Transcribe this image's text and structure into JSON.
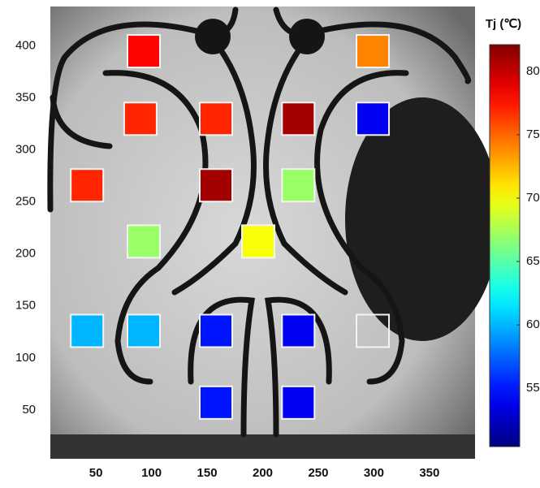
{
  "chart_data": {
    "type": "scatter",
    "colorbar_label": "Tj (℃)",
    "colormap": "jet",
    "x": [
      93,
      299,
      90,
      158,
      232,
      299,
      42,
      158,
      232,
      93,
      196,
      42,
      93,
      158,
      232,
      299,
      158,
      232
    ],
    "y": [
      395,
      395,
      330,
      330,
      330,
      330,
      266,
      266,
      266,
      212,
      212,
      126,
      126,
      126,
      126,
      126,
      57,
      57
    ],
    "values": [
      78,
      74,
      77,
      77,
      81,
      54,
      77,
      81,
      67,
      67,
      70,
      60,
      60,
      55,
      54,
      null,
      55,
      54
    ],
    "xlim": [
      9,
      391
    ],
    "ylim": [
      3,
      438
    ],
    "xticks": [
      50,
      100,
      150,
      200,
      250,
      300,
      350
    ],
    "yticks": [
      50,
      100,
      150,
      200,
      250,
      300,
      350,
      400
    ],
    "clim": [
      50.4,
      82.1
    ],
    "cticks": [
      55,
      60,
      65,
      70,
      75,
      80
    ]
  }
}
